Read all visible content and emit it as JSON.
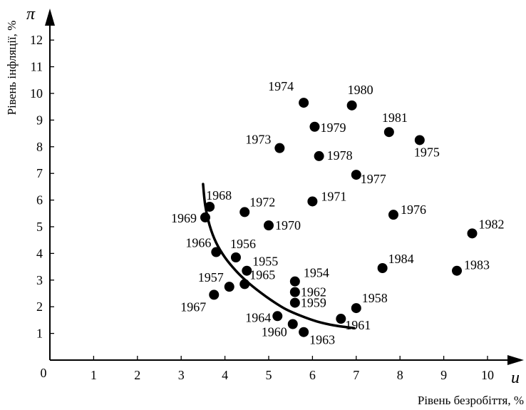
{
  "chart_data": {
    "type": "scatter",
    "title": "",
    "xlabel": "Рівень безробіття, %",
    "ylabel": "Рівень інфляції, %",
    "x_symbol": "u",
    "y_symbol": "π",
    "origin_label": "0",
    "xlim": [
      0,
      10.9
    ],
    "ylim": [
      0,
      13
    ],
    "x_ticks": [
      "1",
      "2",
      "3",
      "4",
      "5",
      "6",
      "7",
      "8",
      "9",
      "10"
    ],
    "y_ticks": [
      "1",
      "2",
      "3",
      "4",
      "5",
      "6",
      "7",
      "8",
      "9",
      "10",
      "11",
      "12"
    ],
    "grid": false,
    "legend": "none",
    "marker_color": "#000000",
    "points": [
      {
        "label": "1954",
        "x": 5.6,
        "y": 2.95
      },
      {
        "label": "1955",
        "x": 4.5,
        "y": 3.35
      },
      {
        "label": "1956",
        "x": 4.25,
        "y": 3.85
      },
      {
        "label": "1957",
        "x": 4.1,
        "y": 2.75
      },
      {
        "label": "1958",
        "x": 7.0,
        "y": 1.95
      },
      {
        "label": "1959",
        "x": 5.6,
        "y": 2.15
      },
      {
        "label": "1960",
        "x": 5.55,
        "y": 1.35
      },
      {
        "label": "1961",
        "x": 6.65,
        "y": 1.55
      },
      {
        "label": "1962",
        "x": 5.6,
        "y": 2.55
      },
      {
        "label": "1963",
        "x": 5.8,
        "y": 1.05
      },
      {
        "label": "1964",
        "x": 5.2,
        "y": 1.65
      },
      {
        "label": "1965",
        "x": 4.45,
        "y": 2.85
      },
      {
        "label": "1966",
        "x": 3.8,
        "y": 4.05
      },
      {
        "label": "1967",
        "x": 3.75,
        "y": 2.45
      },
      {
        "label": "1968",
        "x": 3.65,
        "y": 5.75
      },
      {
        "label": "1969",
        "x": 3.55,
        "y": 5.35
      },
      {
        "label": "1970",
        "x": 5.0,
        "y": 5.05
      },
      {
        "label": "1971",
        "x": 6.0,
        "y": 5.95
      },
      {
        "label": "1972",
        "x": 4.45,
        "y": 5.55
      },
      {
        "label": "1973",
        "x": 5.25,
        "y": 7.95
      },
      {
        "label": "1974",
        "x": 5.8,
        "y": 9.65
      },
      {
        "label": "1975",
        "x": 8.45,
        "y": 8.25
      },
      {
        "label": "1976",
        "x": 7.85,
        "y": 5.45
      },
      {
        "label": "1977",
        "x": 7.0,
        "y": 6.95
      },
      {
        "label": "1978",
        "x": 6.15,
        "y": 7.65
      },
      {
        "label": "1979",
        "x": 6.05,
        "y": 8.75
      },
      {
        "label": "1980",
        "x": 6.9,
        "y": 9.55
      },
      {
        "label": "1981",
        "x": 7.75,
        "y": 8.55
      },
      {
        "label": "1982",
        "x": 9.65,
        "y": 4.75
      },
      {
        "label": "1983",
        "x": 9.3,
        "y": 3.35
      },
      {
        "label": "1984",
        "x": 7.6,
        "y": 3.45
      }
    ],
    "curve": {
      "x": [
        3.5,
        3.55,
        3.65,
        3.8,
        4.0,
        4.25,
        4.5,
        4.8,
        5.1,
        5.4,
        5.75,
        6.1,
        6.5,
        6.95
      ],
      "y": [
        6.6,
        5.8,
        5.05,
        4.4,
        3.85,
        3.35,
        2.95,
        2.55,
        2.2,
        1.9,
        1.65,
        1.45,
        1.3,
        1.2
      ]
    }
  }
}
